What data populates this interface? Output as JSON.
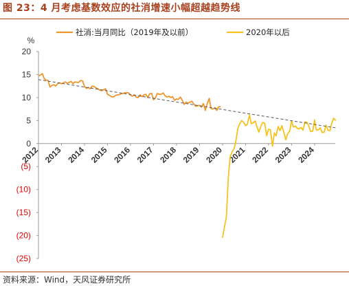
{
  "title": "图 23：4 月考虑基数效应的社消增速小幅超越趋势线",
  "source": "资料来源：Wind，天风证券研究所",
  "colors": {
    "title": "#a8401e",
    "series1": "#f0952e",
    "series2": "#f7c21b",
    "trend": "#555555",
    "negative_tick": "#e60000",
    "axis": "#999999"
  },
  "chart_data": {
    "type": "line",
    "ylabel": "%",
    "ylim": [
      -25,
      20
    ],
    "yticks": [
      20,
      15,
      10,
      5,
      0,
      -5,
      -10,
      -15,
      -20,
      -25
    ],
    "ytick_labels": [
      "20",
      "15",
      "10",
      "5",
      "0",
      "(5)",
      "(10)",
      "(15)",
      "(20)",
      "(25)"
    ],
    "xlim": [
      2012.0,
      2024.9
    ],
    "xticks": [
      2012,
      2013,
      2014,
      2015,
      2016,
      2017,
      2018,
      2019,
      2020,
      2021,
      2022,
      2023,
      2024
    ],
    "xtick_labels": [
      "2012",
      "2013",
      "2014",
      "2015",
      "2016",
      "2017",
      "2018",
      "2019",
      "2020",
      "2021",
      "2022",
      "2023",
      "2024"
    ],
    "legend": {
      "placement": "top"
    },
    "series": [
      {
        "name": "社消:当月同比（2019年及以前）",
        "style": "solid",
        "points": [
          [
            2012.0,
            14.7
          ],
          [
            2012.08,
            14.9
          ],
          [
            2012.17,
            15.2
          ],
          [
            2012.25,
            14.1
          ],
          [
            2012.33,
            13.8
          ],
          [
            2012.42,
            13.7
          ],
          [
            2012.5,
            12.3
          ],
          [
            2012.58,
            12.6
          ],
          [
            2012.67,
            12.8
          ],
          [
            2012.75,
            12.5
          ],
          [
            2012.83,
            13.0
          ],
          [
            2012.92,
            13.2
          ],
          [
            2013.0,
            13.0
          ],
          [
            2013.08,
            13.2
          ],
          [
            2013.17,
            13.4
          ],
          [
            2013.25,
            13.1
          ],
          [
            2013.33,
            13.3
          ],
          [
            2013.42,
            13.5
          ],
          [
            2013.5,
            13.0
          ],
          [
            2013.58,
            13.4
          ],
          [
            2013.67,
            13.3
          ],
          [
            2013.75,
            13.3
          ],
          [
            2013.83,
            13.7
          ],
          [
            2013.92,
            13.6
          ],
          [
            2014.0,
            12.4
          ],
          [
            2014.08,
            12.0
          ],
          [
            2014.17,
            12.2
          ],
          [
            2014.25,
            11.9
          ],
          [
            2014.33,
            12.5
          ],
          [
            2014.42,
            12.4
          ],
          [
            2014.5,
            12.1
          ],
          [
            2014.58,
            11.9
          ],
          [
            2014.67,
            11.6
          ],
          [
            2014.75,
            11.5
          ],
          [
            2014.83,
            11.7
          ],
          [
            2014.92,
            11.9
          ],
          [
            2015.0,
            10.7
          ],
          [
            2015.08,
            10.5
          ],
          [
            2015.17,
            10.2
          ],
          [
            2015.25,
            10.1
          ],
          [
            2015.33,
            10.4
          ],
          [
            2015.42,
            10.6
          ],
          [
            2015.5,
            10.6
          ],
          [
            2015.58,
            10.8
          ],
          [
            2015.67,
            10.9
          ],
          [
            2015.75,
            11.0
          ],
          [
            2015.83,
            11.1
          ],
          [
            2015.92,
            11.0
          ],
          [
            2016.0,
            10.5
          ],
          [
            2016.08,
            10.3
          ],
          [
            2016.17,
            10.6
          ],
          [
            2016.25,
            10.1
          ],
          [
            2016.33,
            10.0
          ],
          [
            2016.42,
            10.6
          ],
          [
            2016.5,
            10.2
          ],
          [
            2016.58,
            10.6
          ],
          [
            2016.67,
            10.7
          ],
          [
            2016.75,
            10.0
          ],
          [
            2016.83,
            10.8
          ],
          [
            2016.92,
            10.9
          ],
          [
            2017.0,
            9.5
          ],
          [
            2017.08,
            9.9
          ],
          [
            2017.17,
            10.9
          ],
          [
            2017.25,
            10.7
          ],
          [
            2017.33,
            10.7
          ],
          [
            2017.42,
            11.0
          ],
          [
            2017.5,
            10.4
          ],
          [
            2017.58,
            10.1
          ],
          [
            2017.67,
            10.3
          ],
          [
            2017.75,
            10.0
          ],
          [
            2017.83,
            10.2
          ],
          [
            2017.92,
            9.4
          ],
          [
            2018.0,
            9.7
          ],
          [
            2018.08,
            9.6
          ],
          [
            2018.17,
            10.1
          ],
          [
            2018.25,
            9.4
          ],
          [
            2018.33,
            8.5
          ],
          [
            2018.42,
            9.0
          ],
          [
            2018.5,
            8.8
          ],
          [
            2018.58,
            9.0
          ],
          [
            2018.67,
            9.2
          ],
          [
            2018.75,
            8.6
          ],
          [
            2018.83,
            8.1
          ],
          [
            2018.92,
            8.2
          ],
          [
            2019.0,
            8.3
          ],
          [
            2019.08,
            7.9
          ],
          [
            2019.17,
            8.7
          ],
          [
            2019.25,
            7.2
          ],
          [
            2019.33,
            8.6
          ],
          [
            2019.42,
            9.8
          ],
          [
            2019.5,
            7.6
          ],
          [
            2019.58,
            7.5
          ],
          [
            2019.67,
            7.8
          ],
          [
            2019.75,
            7.2
          ],
          [
            2019.83,
            8.0
          ],
          [
            2019.92,
            8.0
          ]
        ]
      },
      {
        "name": "2020年以后",
        "style": "solid",
        "points": [
          [
            2020.0,
            -20.5
          ],
          [
            2020.17,
            -15.8
          ],
          [
            2020.25,
            -7.5
          ],
          [
            2020.33,
            -2.8
          ],
          [
            2020.42,
            -1.8
          ],
          [
            2020.5,
            -1.1
          ],
          [
            2020.58,
            0.5
          ],
          [
            2020.67,
            3.3
          ],
          [
            2020.75,
            4.3
          ],
          [
            2020.83,
            5.0
          ],
          [
            2020.92,
            4.6
          ],
          [
            2021.0,
            3.9
          ],
          [
            2021.08,
            4.2
          ],
          [
            2021.17,
            6.2
          ],
          [
            2021.25,
            4.3
          ],
          [
            2021.33,
            4.5
          ],
          [
            2021.42,
            4.9
          ],
          [
            2021.5,
            3.6
          ],
          [
            2021.58,
            2.5
          ],
          [
            2021.67,
            3.8
          ],
          [
            2021.75,
            4.6
          ],
          [
            2021.83,
            4.4
          ],
          [
            2021.92,
            1.7
          ],
          [
            2022.0,
            3.1
          ],
          [
            2022.08,
            3.0
          ],
          [
            2022.17,
            -0.6
          ],
          [
            2022.25,
            2.3
          ],
          [
            2022.33,
            1.7
          ],
          [
            2022.42,
            3.7
          ],
          [
            2022.5,
            2.8
          ],
          [
            2022.58,
            3.9
          ],
          [
            2022.67,
            2.4
          ],
          [
            2022.75,
            0.8
          ],
          [
            2022.83,
            2.1
          ],
          [
            2022.92,
            2.7
          ],
          [
            2023.0,
            4.9
          ],
          [
            2023.08,
            3.6
          ],
          [
            2023.17,
            3.8
          ],
          [
            2023.25,
            3.3
          ],
          [
            2023.33,
            3.2
          ],
          [
            2023.42,
            3.5
          ],
          [
            2023.5,
            2.9
          ],
          [
            2023.58,
            4.7
          ],
          [
            2023.67,
            4.6
          ],
          [
            2023.75,
            3.8
          ],
          [
            2023.83,
            2.6
          ],
          [
            2023.92,
            2.7
          ],
          [
            2024.0,
            5.1
          ],
          [
            2024.08,
            2.9
          ],
          [
            2024.17,
            3.0
          ],
          [
            2024.25,
            3.4
          ],
          [
            2024.33,
            2.4
          ],
          [
            2024.42,
            2.5
          ],
          [
            2024.5,
            4.0
          ],
          [
            2024.58,
            2.9
          ],
          [
            2024.67,
            2.8
          ],
          [
            2024.75,
            4.5
          ],
          [
            2024.83,
            5.5
          ],
          [
            2024.92,
            5.0
          ]
        ]
      },
      {
        "name": "",
        "role": "trend",
        "style": "dashed",
        "points": [
          [
            2012.0,
            13.9
          ],
          [
            2024.92,
            3.4
          ]
        ]
      }
    ]
  }
}
